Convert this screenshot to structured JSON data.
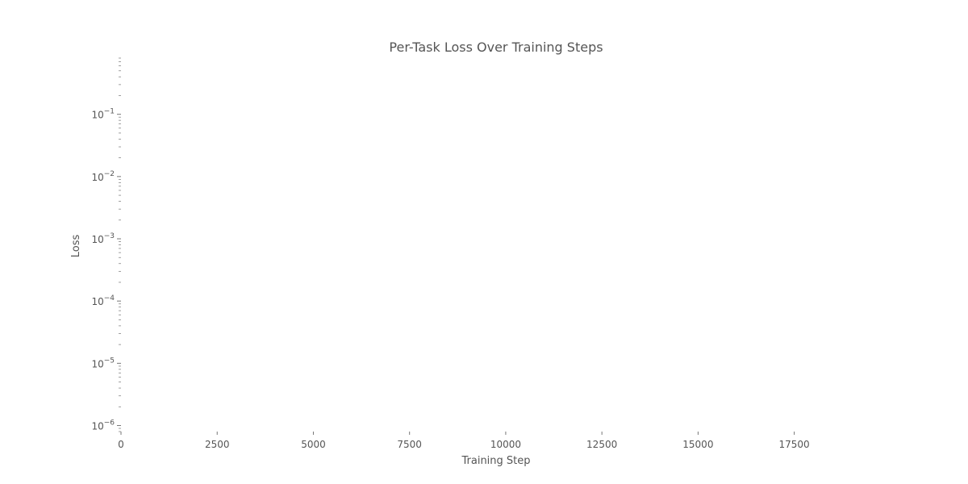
{
  "chart_data": {
    "type": "line",
    "title": "Per-Task Loss Over Training Steps",
    "xlabel": "Training Step",
    "ylabel": "Loss",
    "x_scale": "linear",
    "y_scale": "log",
    "xlim": [
      0,
      19500
    ],
    "ylim": [
      8e-07,
      0.8
    ],
    "x_ticks": [
      0,
      2500,
      5000,
      7500,
      10000,
      12500,
      15000,
      17500
    ],
    "x_tick_labels": [
      "0",
      "2500",
      "5000",
      "7500",
      "10000",
      "12500",
      "15000",
      "17500"
    ],
    "y_ticks": [
      1e-06,
      1e-05,
      0.0001,
      0.001,
      0.01,
      0.1
    ],
    "y_tick_labels": [
      {
        "base": "10",
        "exp": "−6"
      },
      {
        "base": "10",
        "exp": "−5"
      },
      {
        "base": "10",
        "exp": "−4"
      },
      {
        "base": "10",
        "exp": "−3"
      },
      {
        "base": "10",
        "exp": "−2"
      },
      {
        "base": "10",
        "exp": "−1"
      }
    ],
    "grid": false,
    "series": []
  }
}
